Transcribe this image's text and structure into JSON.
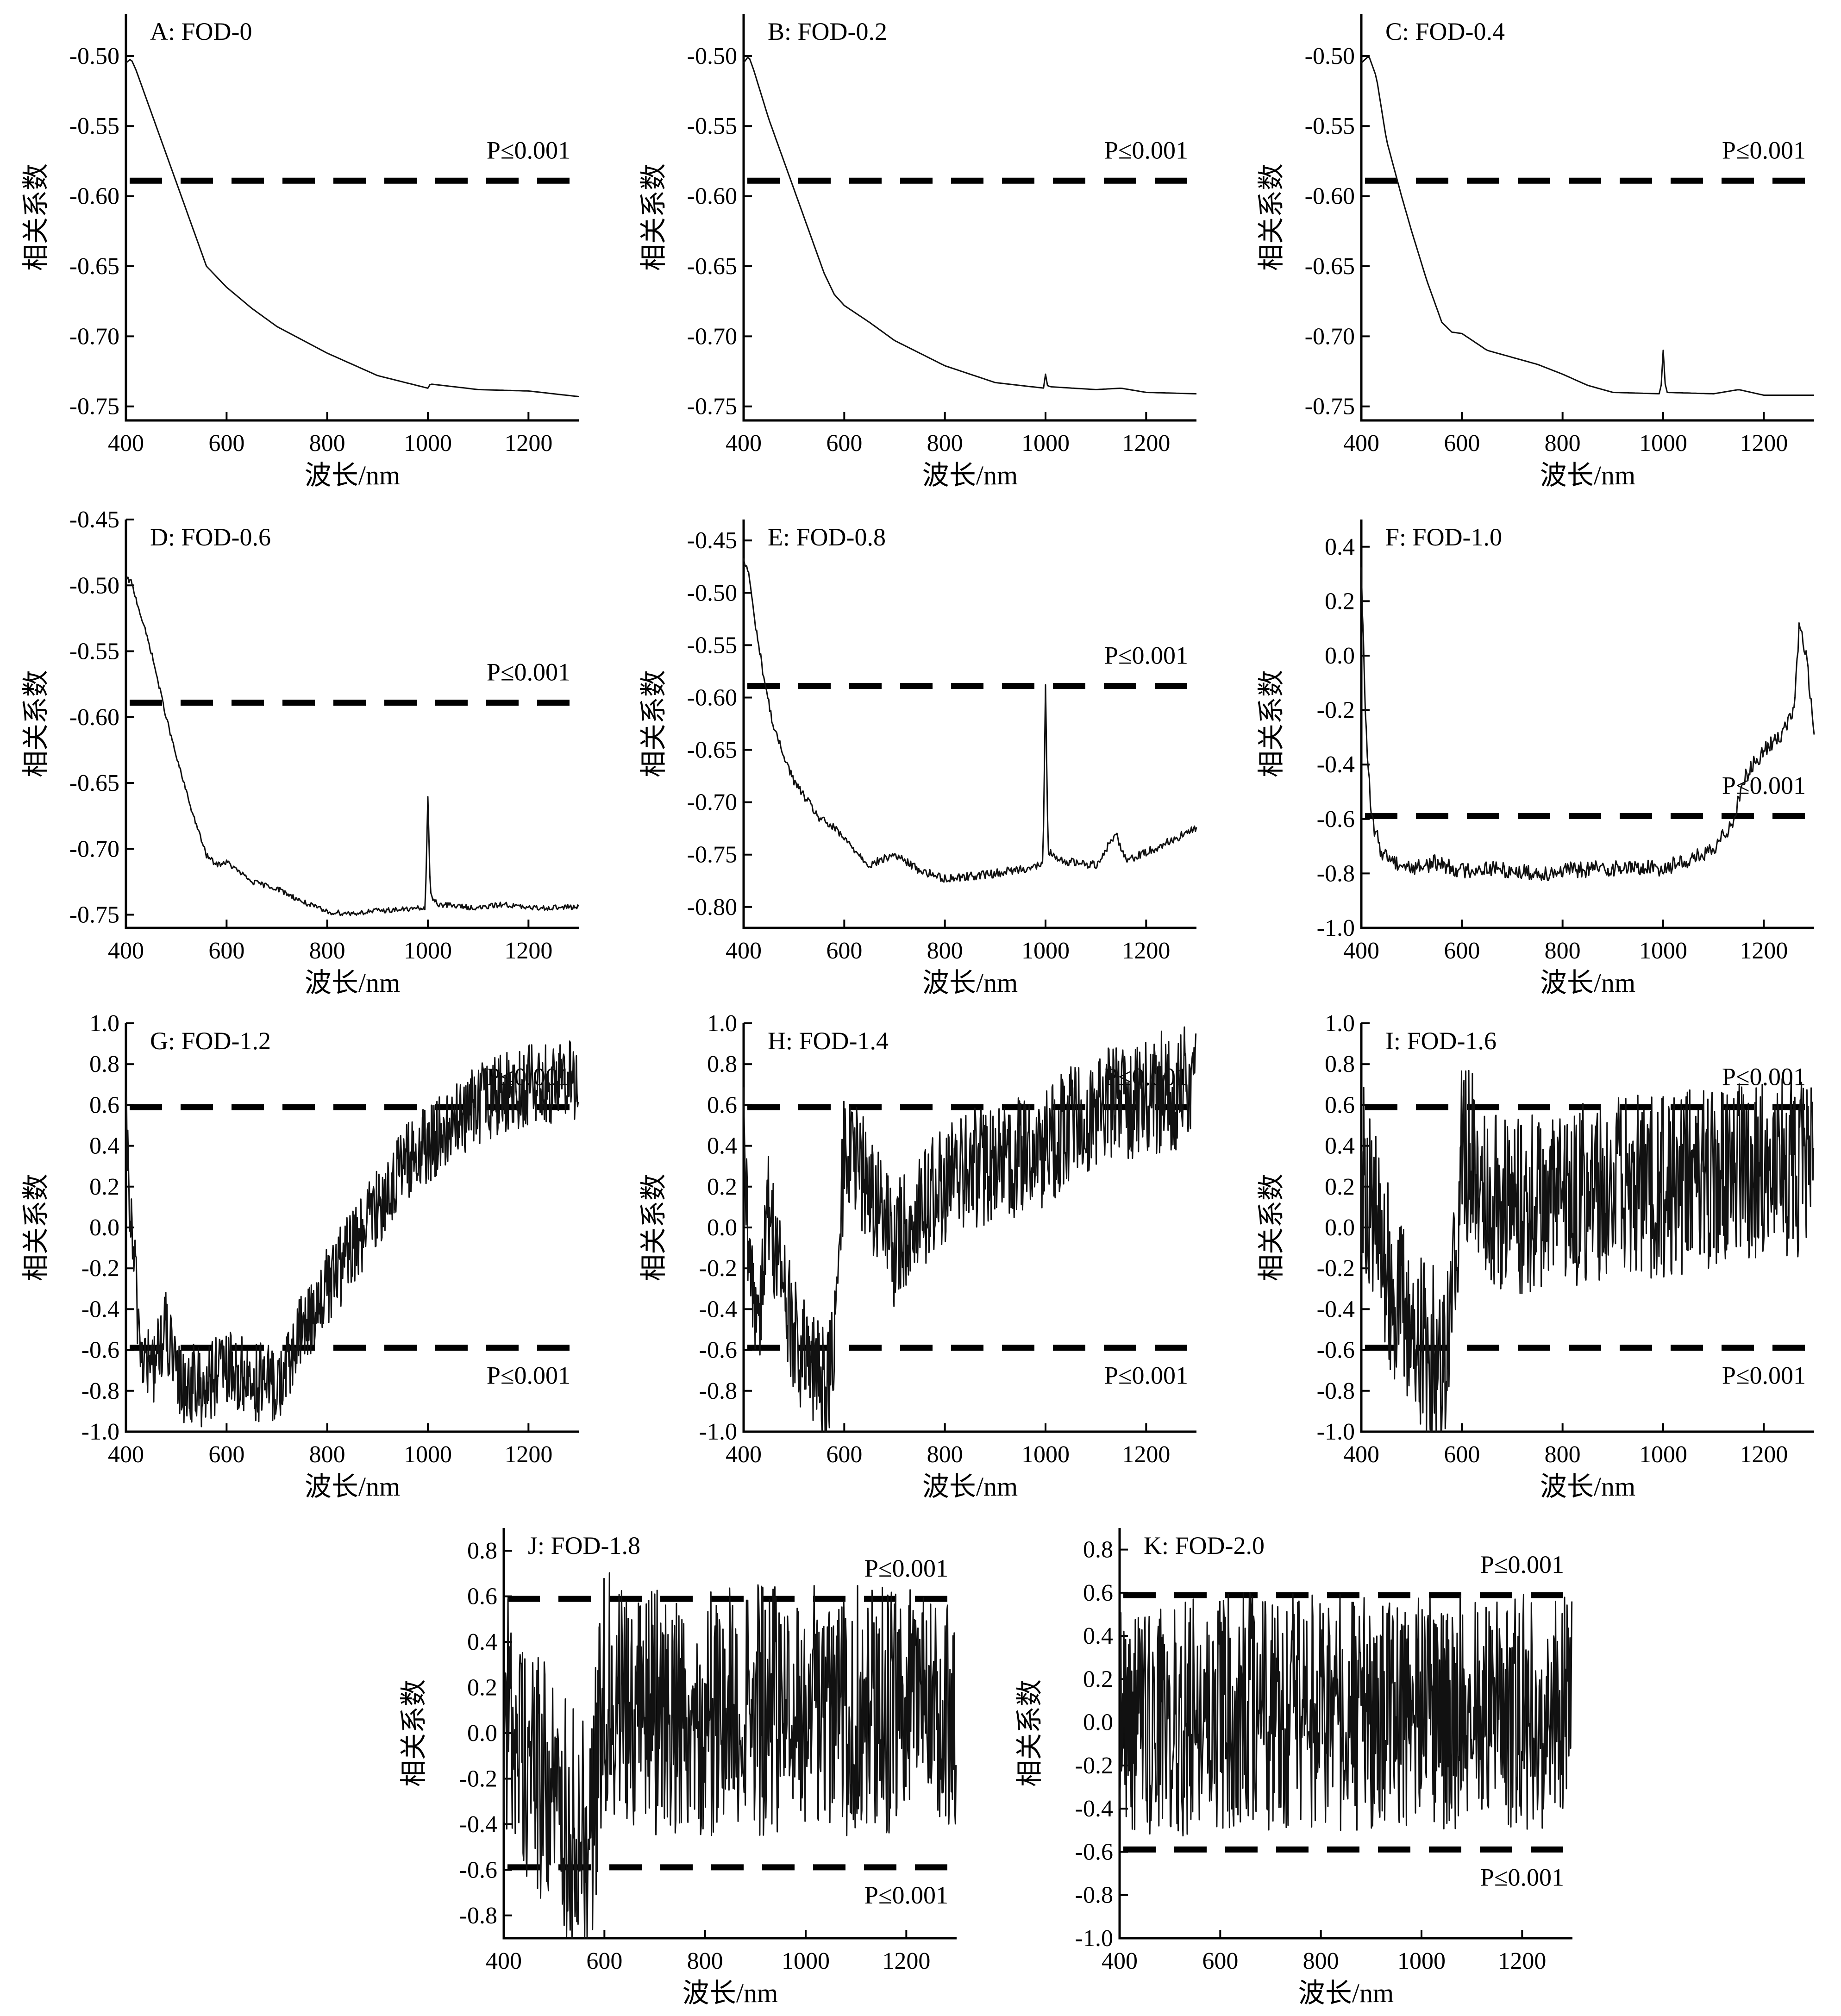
{
  "chart_data": [
    {
      "id": "A",
      "type": "line",
      "title": "A: FOD-0",
      "xlabel": "波长/nm",
      "ylabel": "相关系数",
      "xlim": [
        400,
        1300
      ],
      "ylim": [
        -0.76,
        -0.47
      ],
      "xticks": [
        "400",
        "600",
        "800",
        "1000",
        "1200"
      ],
      "yticks": [
        "-0.50",
        "-0.55",
        "-0.60",
        "-0.65",
        "-0.70",
        "-0.75"
      ],
      "threshold_upper": -0.589,
      "threshold_lower": null,
      "upper_label": "P≤0.001",
      "lower_label": "",
      "noise": 0,
      "x": [
        400,
        410,
        420,
        450,
        480,
        500,
        530,
        560,
        600,
        650,
        700,
        800,
        900,
        1000,
        1005,
        1100,
        1200,
        1300
      ],
      "y": [
        -0.505,
        -0.502,
        -0.51,
        -0.54,
        -0.57,
        -0.59,
        -0.62,
        -0.65,
        -0.665,
        -0.68,
        -0.693,
        -0.712,
        -0.728,
        -0.737,
        -0.734,
        -0.738,
        -0.739,
        -0.743
      ]
    },
    {
      "id": "B",
      "type": "line",
      "title": "B: FOD-0.2",
      "xlabel": "波长/nm",
      "ylabel": "相关系数",
      "xlim": [
        400,
        1300
      ],
      "ylim": [
        -0.76,
        -0.47
      ],
      "xticks": [
        "400",
        "600",
        "800",
        "1000",
        "1200"
      ],
      "yticks": [
        "-0.50",
        "-0.55",
        "-0.60",
        "-0.65",
        "-0.70",
        "-0.75"
      ],
      "threshold_upper": -0.589,
      "threshold_lower": null,
      "upper_label": "P≤0.001",
      "lower_label": "",
      "noise": 0,
      "x": [
        400,
        410,
        420,
        450,
        480,
        500,
        530,
        560,
        580,
        600,
        650,
        700,
        800,
        900,
        998,
        1000,
        1003,
        1010,
        1100,
        1150,
        1200,
        1300
      ],
      "y": [
        -0.505,
        -0.5,
        -0.51,
        -0.545,
        -0.575,
        -0.595,
        -0.625,
        -0.655,
        -0.67,
        -0.678,
        -0.69,
        -0.703,
        -0.721,
        -0.733,
        -0.737,
        -0.727,
        -0.735,
        -0.736,
        -0.738,
        -0.737,
        -0.74,
        -0.741
      ]
    },
    {
      "id": "C",
      "type": "line",
      "title": "C: FOD-0.4",
      "xlabel": "波长/nm",
      "ylabel": "相关系数",
      "xlim": [
        400,
        1300
      ],
      "ylim": [
        -0.76,
        -0.47
      ],
      "xticks": [
        "400",
        "600",
        "800",
        "1000",
        "1200"
      ],
      "yticks": [
        "-0.50",
        "-0.55",
        "-0.60",
        "-0.65",
        "-0.70",
        "-0.75"
      ],
      "threshold_upper": -0.589,
      "threshold_lower": null,
      "upper_label": "P≤0.001",
      "lower_label": "",
      "noise": 0,
      "x": [
        400,
        415,
        430,
        450,
        480,
        500,
        530,
        560,
        580,
        600,
        650,
        700,
        750,
        800,
        850,
        900,
        995,
        1000,
        1005,
        1100,
        1150,
        1200,
        1300
      ],
      "y": [
        -0.505,
        -0.5,
        -0.515,
        -0.56,
        -0.6,
        -0.625,
        -0.66,
        -0.69,
        -0.697,
        -0.698,
        -0.71,
        -0.715,
        -0.72,
        -0.727,
        -0.735,
        -0.74,
        -0.741,
        -0.71,
        -0.74,
        -0.741,
        -0.738,
        -0.742,
        -0.742
      ]
    },
    {
      "id": "D",
      "type": "line",
      "title": "D: FOD-0.6",
      "xlabel": "波长/nm",
      "ylabel": "相关系数",
      "xlim": [
        400,
        1300
      ],
      "ylim": [
        -0.76,
        -0.45
      ],
      "xticks": [
        "400",
        "600",
        "800",
        "1000",
        "1200"
      ],
      "yticks": [
        "-0.45",
        "-0.50",
        "-0.55",
        "-0.60",
        "-0.65",
        "-0.70",
        "-0.75"
      ],
      "threshold_upper": -0.589,
      "threshold_lower": null,
      "upper_label": "P≤0.001",
      "lower_label": "",
      "noise": 0.002,
      "x": [
        400,
        410,
        420,
        450,
        480,
        500,
        530,
        560,
        580,
        600,
        650,
        700,
        750,
        800,
        850,
        900,
        995,
        1000,
        1005,
        1020,
        1100,
        1150,
        1200,
        1300
      ],
      "y": [
        -0.495,
        -0.497,
        -0.51,
        -0.55,
        -0.6,
        -0.63,
        -0.67,
        -0.705,
        -0.712,
        -0.71,
        -0.725,
        -0.73,
        -0.74,
        -0.748,
        -0.749,
        -0.747,
        -0.745,
        -0.66,
        -0.735,
        -0.742,
        -0.745,
        -0.742,
        -0.745,
        -0.744
      ]
    },
    {
      "id": "E",
      "type": "line",
      "title": "E: FOD-0.8",
      "xlabel": "波长/nm",
      "ylabel": "相关系数",
      "xlim": [
        400,
        1300
      ],
      "ylim": [
        -0.82,
        -0.43
      ],
      "xticks": [
        "400",
        "600",
        "800",
        "1000",
        "1200"
      ],
      "yticks": [
        "-0.45",
        "-0.50",
        "-0.55",
        "-0.60",
        "-0.65",
        "-0.70",
        "-0.75",
        "-0.80"
      ],
      "threshold_upper": -0.589,
      "threshold_lower": null,
      "upper_label": "P≤0.001",
      "lower_label": "",
      "noise": 0.004,
      "x": [
        400,
        410,
        420,
        440,
        460,
        500,
        550,
        580,
        600,
        650,
        700,
        750,
        800,
        900,
        995,
        1000,
        1005,
        1020,
        1100,
        1140,
        1160,
        1200,
        1300
      ],
      "y": [
        -0.47,
        -0.48,
        -0.52,
        -0.58,
        -0.63,
        -0.68,
        -0.715,
        -0.725,
        -0.735,
        -0.76,
        -0.75,
        -0.765,
        -0.773,
        -0.768,
        -0.76,
        -0.59,
        -0.745,
        -0.755,
        -0.76,
        -0.73,
        -0.755,
        -0.748,
        -0.725
      ]
    },
    {
      "id": "F",
      "type": "line",
      "title": "F: FOD-1.0",
      "xlabel": "波长/nm",
      "ylabel": "相关系数",
      "xlim": [
        400,
        1300
      ],
      "ylim": [
        -1.0,
        0.5
      ],
      "xticks": [
        "400",
        "600",
        "800",
        "1000",
        "1200"
      ],
      "yticks": [
        "0.4",
        "0.2",
        "0.0",
        "-0.2",
        "-0.4",
        "-0.6",
        "-0.8",
        "-1.0"
      ],
      "threshold_upper": -0.589,
      "threshold_lower": null,
      "upper_label": "P≤0.001",
      "lower_label": "",
      "noise": 0.03,
      "x": [
        400,
        405,
        410,
        420,
        440,
        470,
        500,
        550,
        600,
        650,
        700,
        750,
        800,
        900,
        1000,
        1100,
        1140,
        1160,
        1200,
        1230,
        1260,
        1270,
        1285,
        1300
      ],
      "y": [
        0.3,
        0.0,
        -0.3,
        -0.6,
        -0.72,
        -0.76,
        -0.78,
        -0.76,
        -0.79,
        -0.78,
        -0.79,
        -0.8,
        -0.79,
        -0.78,
        -0.78,
        -0.72,
        -0.6,
        -0.45,
        -0.35,
        -0.3,
        -0.2,
        0.1,
        0.0,
        -0.3
      ]
    },
    {
      "id": "G",
      "type": "line",
      "title": "G: FOD-1.2",
      "xlabel": "波长/nm",
      "ylabel": "相关系数",
      "xlim": [
        400,
        1300
      ],
      "ylim": [
        -1.0,
        1.0
      ],
      "xticks": [
        "400",
        "600",
        "800",
        "1000",
        "1200"
      ],
      "yticks": [
        "1.0",
        "0.8",
        "0.6",
        "0.4",
        "0.2",
        "0.0",
        "-0.2",
        "-0.4",
        "-0.6",
        "-0.8",
        "-1.0"
      ],
      "threshold_upper": 0.589,
      "threshold_lower": -0.589,
      "upper_label": "P≤0.001",
      "lower_label": "P≤0.001",
      "noise": 0.2,
      "x": [
        400,
        410,
        430,
        450,
        480,
        500,
        550,
        600,
        650,
        700,
        720,
        750,
        800,
        850,
        900,
        950,
        1000,
        1050,
        1100,
        1150,
        1200,
        1300
      ],
      "y": [
        0.5,
        0.0,
        -0.6,
        -0.7,
        -0.5,
        -0.75,
        -0.78,
        -0.7,
        -0.75,
        -0.78,
        -0.7,
        -0.5,
        -0.3,
        -0.1,
        0.1,
        0.3,
        0.4,
        0.5,
        0.6,
        0.65,
        0.7,
        0.72
      ]
    },
    {
      "id": "H",
      "type": "line",
      "title": "H: FOD-1.4",
      "xlabel": "波长/nm",
      "ylabel": "相关系数",
      "xlim": [
        400,
        1300
      ],
      "ylim": [
        -1.0,
        1.0
      ],
      "xticks": [
        "400",
        "600",
        "800",
        "1000",
        "1200"
      ],
      "yticks": [
        "1.0",
        "0.8",
        "0.6",
        "0.4",
        "0.2",
        "0.0",
        "-0.2",
        "-0.4",
        "-0.6",
        "-0.8",
        "-1.0"
      ],
      "threshold_upper": 0.589,
      "threshold_lower": -0.589,
      "upper_label": "P≤0.001",
      "lower_label": "P≤0.001",
      "noise": 0.3,
      "x": [
        400,
        410,
        430,
        450,
        480,
        500,
        530,
        560,
        580,
        600,
        650,
        700,
        750,
        800,
        850,
        900,
        950,
        1000,
        1050,
        1100,
        1200,
        1300
      ],
      "y": [
        0.4,
        -0.2,
        -0.4,
        0.1,
        -0.3,
        -0.55,
        -0.7,
        -0.75,
        -0.65,
        0.4,
        0.2,
        -0.1,
        0.1,
        0.2,
        0.3,
        0.3,
        0.35,
        0.4,
        0.5,
        0.6,
        0.65,
        0.7
      ]
    },
    {
      "id": "I",
      "type": "line",
      "title": "I: FOD-1.6",
      "xlabel": "波长/nm",
      "ylabel": "相关系数",
      "xlim": [
        400,
        1300
      ],
      "ylim": [
        -1.0,
        1.0
      ],
      "xticks": [
        "400",
        "600",
        "800",
        "1000",
        "1200"
      ],
      "yticks": [
        "1.0",
        "0.8",
        "0.6",
        "0.4",
        "0.2",
        "0.0",
        "-0.2",
        "-0.4",
        "-0.6",
        "-0.8",
        "-1.0"
      ],
      "threshold_upper": 0.589,
      "threshold_lower": -0.589,
      "upper_label": "P≤0.001",
      "lower_label": "P≤0.001",
      "noise": 0.45,
      "x": [
        400,
        420,
        450,
        480,
        500,
        530,
        560,
        580,
        600,
        650,
        700,
        800,
        900,
        1000,
        1100,
        1200,
        1300
      ],
      "y": [
        0.3,
        0.1,
        -0.2,
        -0.4,
        -0.5,
        -0.6,
        -0.65,
        -0.4,
        0.4,
        0.2,
        0.1,
        0.15,
        0.2,
        0.2,
        0.25,
        0.3,
        0.3
      ]
    },
    {
      "id": "J",
      "type": "line",
      "title": "J: FOD-1.8",
      "xlabel": "波长/nm",
      "ylabel": "相关系数",
      "xlim": [
        400,
        1300
      ],
      "ylim": [
        -0.9,
        0.9
      ],
      "xticks": [
        "400",
        "600",
        "800",
        "1000",
        "1200"
      ],
      "yticks": [
        "0.8",
        "0.6",
        "0.4",
        "0.2",
        "0.0",
        "-0.2",
        "-0.4",
        "-0.6",
        "-0.8"
      ],
      "threshold_upper": 0.589,
      "threshold_lower": -0.589,
      "upper_label": "P≤0.001",
      "lower_label": "P≤0.001",
      "noise": 0.55,
      "x": [
        400,
        450,
        500,
        550,
        580,
        600,
        700,
        800,
        900,
        1000,
        1100,
        1200,
        1300
      ],
      "y": [
        0.1,
        -0.1,
        -0.3,
        -0.45,
        -0.3,
        0.2,
        0.1,
        0.1,
        0.1,
        0.1,
        0.1,
        0.1,
        0.1
      ]
    },
    {
      "id": "K",
      "type": "line",
      "title": "K: FOD-2.0",
      "xlabel": "波长/nm",
      "ylabel": "相关系数",
      "xlim": [
        400,
        1300
      ],
      "ylim": [
        -1.0,
        0.9
      ],
      "xticks": [
        "400",
        "600",
        "800",
        "1000",
        "1200"
      ],
      "yticks": [
        "0.8",
        "0.6",
        "0.4",
        "0.2",
        "0.0",
        "-0.2",
        "-0.4",
        "-0.6",
        "-0.8",
        "-1.0"
      ],
      "threshold_upper": 0.589,
      "threshold_lower": -0.589,
      "upper_label": "P≤0.001",
      "lower_label": "P≤0.001",
      "noise": 0.55,
      "x": [
        400,
        500,
        600,
        700,
        800,
        900,
        1000,
        1100,
        1200,
        1300
      ],
      "y": [
        0.05,
        0.0,
        0.05,
        0.05,
        0.05,
        0.05,
        0.05,
        0.05,
        0.05,
        0.05
      ]
    }
  ]
}
